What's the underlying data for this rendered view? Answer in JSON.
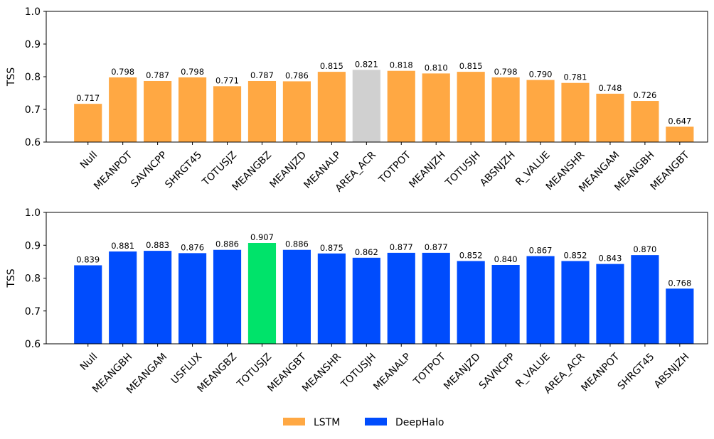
{
  "chart_data": [
    {
      "type": "bar",
      "ylabel": "TSS",
      "ylim": [
        0.6,
        1.0
      ],
      "yticks": [
        "0.6",
        "0.7",
        "0.8",
        "0.9",
        "1.0"
      ],
      "grid": false,
      "series_name": "LSTM",
      "colors": {
        "default": "#ffa843",
        "highlight": "#d0d0d0"
      },
      "highlight_index": 8,
      "categories": [
        "Null",
        "MEANPOT",
        "SAVNCPP",
        "SHRGT45",
        "TOTUSJZ",
        "MEANGBZ",
        "MEANJZD",
        "MEANALP",
        "AREA_ACR",
        "TOTPOT",
        "MEANJZH",
        "TOTUSJH",
        "ABSNJZH",
        "R_VALUE",
        "MEANSHR",
        "MEANGAM",
        "MEANGBH",
        "MEANGBT"
      ],
      "values": [
        0.717,
        0.798,
        0.787,
        0.798,
        0.771,
        0.787,
        0.786,
        0.815,
        0.821,
        0.818,
        0.81,
        0.815,
        0.798,
        0.79,
        0.781,
        0.748,
        0.726,
        0.647
      ],
      "value_labels": [
        "0.717",
        "0.798",
        "0.787",
        "0.798",
        "0.771",
        "0.787",
        "0.786",
        "0.815",
        "0.821",
        "0.818",
        "0.810",
        "0.815",
        "0.798",
        "0.790",
        "0.781",
        "0.748",
        "0.726",
        "0.647"
      ]
    },
    {
      "type": "bar",
      "ylabel": "TSS",
      "ylim": [
        0.6,
        1.0
      ],
      "yticks": [
        "0.6",
        "0.7",
        "0.8",
        "0.9",
        "1.0"
      ],
      "grid": false,
      "series_name": "DeepHalo",
      "colors": {
        "default": "#004cfd",
        "highlight": "#00e36a"
      },
      "highlight_index": 5,
      "categories": [
        "Null",
        "MEANGBH",
        "MEANGAM",
        "USFLUX",
        "MEANGBZ",
        "TOTUSJZ",
        "MEANGBT",
        "MEANSHR",
        "TOTUSJH",
        "MEANALP",
        "TOTPOT",
        "MEANJZD",
        "SAVNCPP",
        "R_VALUE",
        "AREA_ACR",
        "MEANPOT",
        "SHRGT45",
        "ABSNJZH"
      ],
      "values": [
        0.839,
        0.881,
        0.883,
        0.876,
        0.886,
        0.907,
        0.886,
        0.875,
        0.862,
        0.877,
        0.877,
        0.852,
        0.84,
        0.867,
        0.852,
        0.843,
        0.87,
        0.768
      ],
      "value_labels": [
        "0.839",
        "0.881",
        "0.883",
        "0.876",
        "0.886",
        "0.907",
        "0.886",
        "0.875",
        "0.862",
        "0.877",
        "0.877",
        "0.852",
        "0.840",
        "0.867",
        "0.852",
        "0.843",
        "0.870",
        "0.768"
      ]
    }
  ],
  "legend": {
    "placement": "bottom-center",
    "items": [
      {
        "label": "LSTM",
        "color": "#ffa843"
      },
      {
        "label": "DeepHalo",
        "color": "#004cfd"
      }
    ]
  }
}
